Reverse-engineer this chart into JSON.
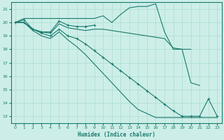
{
  "xlabel": "Humidex (Indice chaleur)",
  "bg_color": "#cdeee8",
  "grid_color": "#aaddcc",
  "line_color": "#1a7a6e",
  "xlim": [
    -0.5,
    23.5
  ],
  "ylim": [
    12.5,
    21.5
  ],
  "yticks": [
    13,
    14,
    15,
    16,
    17,
    18,
    19,
    20,
    21
  ],
  "xticks": [
    0,
    1,
    2,
    3,
    4,
    5,
    6,
    7,
    8,
    9,
    10,
    11,
    12,
    13,
    14,
    15,
    16,
    17,
    18,
    19,
    20,
    21,
    22,
    23
  ],
  "lines": [
    {
      "x": [
        0,
        1,
        2,
        3,
        4,
        5,
        6,
        7,
        8,
        9,
        10,
        11,
        12,
        13,
        14,
        15,
        16,
        17,
        18,
        19,
        20
      ],
      "y": [
        20.0,
        20.3,
        20.3,
        20.3,
        20.3,
        20.3,
        20.3,
        20.3,
        20.3,
        20.3,
        20.5,
        20.0,
        20.6,
        21.1,
        21.2,
        21.2,
        21.4,
        19.3,
        18.0,
        18.0,
        18.0
      ],
      "marker": false
    },
    {
      "x": [
        0,
        1,
        2,
        3,
        4,
        5,
        6,
        7,
        8,
        9
      ],
      "y": [
        20.0,
        20.2,
        19.5,
        19.3,
        19.3,
        20.1,
        19.8,
        19.7,
        19.7,
        19.8
      ],
      "marker": true
    },
    {
      "x": [
        0,
        1,
        2,
        3,
        4,
        5,
        6,
        7,
        8,
        9,
        10,
        11,
        12,
        13,
        14,
        15,
        16,
        17,
        18,
        19,
        20,
        21
      ],
      "y": [
        20.0,
        20.0,
        19.5,
        19.3,
        19.2,
        19.9,
        19.6,
        19.5,
        19.4,
        19.5,
        19.5,
        19.4,
        19.3,
        19.2,
        19.1,
        19.0,
        18.9,
        18.8,
        18.1,
        18.0,
        15.5,
        15.3
      ],
      "marker": false
    },
    {
      "x": [
        0,
        1,
        2,
        3,
        4,
        5,
        6,
        7,
        8,
        9,
        10,
        11,
        12,
        13,
        14,
        15,
        16,
        17,
        18,
        19,
        20,
        21,
        22,
        23
      ],
      "y": [
        20.0,
        20.0,
        19.5,
        19.2,
        19.0,
        19.5,
        19.0,
        18.8,
        18.4,
        17.9,
        17.4,
        16.9,
        16.4,
        15.9,
        15.4,
        14.9,
        14.4,
        13.9,
        13.4,
        13.0,
        13.0,
        13.0,
        14.3,
        13.0
      ],
      "marker": true
    },
    {
      "x": [
        0,
        1,
        2,
        3,
        4,
        5,
        6,
        7,
        8,
        9,
        10,
        11,
        12,
        13,
        14,
        15,
        16,
        17,
        18,
        19,
        20,
        21,
        22,
        23
      ],
      "y": [
        20.0,
        20.0,
        19.4,
        19.0,
        18.8,
        19.3,
        18.7,
        18.2,
        17.6,
        16.9,
        16.2,
        15.5,
        14.8,
        14.1,
        13.5,
        13.2,
        12.9,
        12.9,
        12.9,
        12.9,
        12.9,
        12.9,
        12.9,
        12.9
      ],
      "marker": false
    }
  ]
}
